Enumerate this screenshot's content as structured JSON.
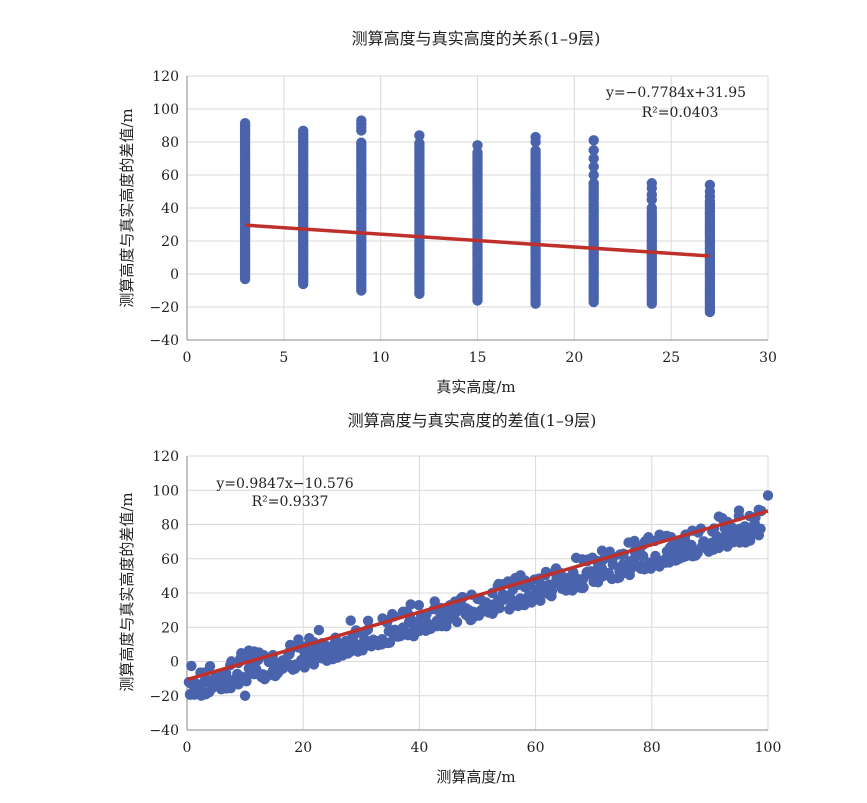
{
  "colors": {
    "marker": "#4a63ad",
    "trend": "#c0302a",
    "grid": "#d9d9d9",
    "axis": "#888888",
    "text": "#222222"
  },
  "chart_data": [
    {
      "type": "scatter",
      "title": "测算高度与真实高度的关系(1–9层)",
      "xlabel": "真实高度/m",
      "ylabel": "测算高度与真实高度的差值/m",
      "xlim": [
        0,
        30
      ],
      "ylim": [
        -40,
        120
      ],
      "xticks": [
        0,
        5,
        10,
        15,
        20,
        25,
        30
      ],
      "yticks": [
        -40,
        -20,
        0,
        20,
        40,
        60,
        80,
        100,
        120
      ],
      "grid": true,
      "series": [
        {
          "kind": "columns",
          "x": [
            3,
            6,
            9,
            12,
            15,
            18,
            21,
            24,
            27
          ],
          "y_min": [
            -3,
            -6,
            -10,
            -12,
            -16,
            -18,
            -17,
            -18,
            -23
          ],
          "y_max": [
            98,
            95,
            93,
            84,
            78,
            83,
            81,
            55,
            54
          ],
          "dense_range": [
            [
              -3,
              92
            ],
            [
              -6,
              88
            ],
            [
              -10,
              80
            ],
            [
              -12,
              80
            ],
            [
              -16,
              75
            ],
            [
              -18,
              75
            ],
            [
              -17,
              56
            ],
            [
              -18,
              38
            ],
            [
              -23,
              45
            ]
          ],
          "outliers": [
            [],
            [],
            [
              87,
              89,
              91,
              93
            ],
            [
              84
            ],
            [
              78
            ],
            [
              80,
              83
            ],
            [
              60,
              65,
              70,
              75,
              81
            ],
            [
              40,
              45,
              48,
              52,
              55
            ],
            [
              47,
              50,
              54
            ]
          ]
        }
      ],
      "trendline": {
        "slope": -0.7784,
        "intercept": 31.95,
        "x_range": [
          3,
          27
        ]
      },
      "annotation": {
        "equation": "y=−0.7784x+31.95",
        "r2": "R²=0.0403"
      }
    },
    {
      "type": "scatter",
      "title": "测算高度与真实高度的差值(1–9层)",
      "xlabel": "测算高度/m",
      "ylabel": "测算高度与真实高度的差值/m",
      "xlim": [
        0,
        100
      ],
      "ylim": [
        -40,
        120
      ],
      "xticks": [
        0,
        20,
        40,
        60,
        80,
        100
      ],
      "yticks": [
        -40,
        -20,
        0,
        20,
        40,
        60,
        80,
        100,
        120
      ],
      "grid": true,
      "series": [
        {
          "kind": "band",
          "x_range": [
            0,
            100
          ],
          "upper_line": {
            "slope": 0.96,
            "intercept": -3
          },
          "lower_line": {
            "slope": 0.96,
            "intercept": -23
          },
          "max_point": [
            100,
            97
          ],
          "min_point": [
            10,
            -20
          ]
        }
      ],
      "trendline": {
        "slope": 0.9847,
        "intercept": -10.576,
        "x_range": [
          0,
          100
        ]
      },
      "annotation": {
        "equation": "y=0.9847x−10.576",
        "r2": "R²=0.9337"
      }
    }
  ]
}
